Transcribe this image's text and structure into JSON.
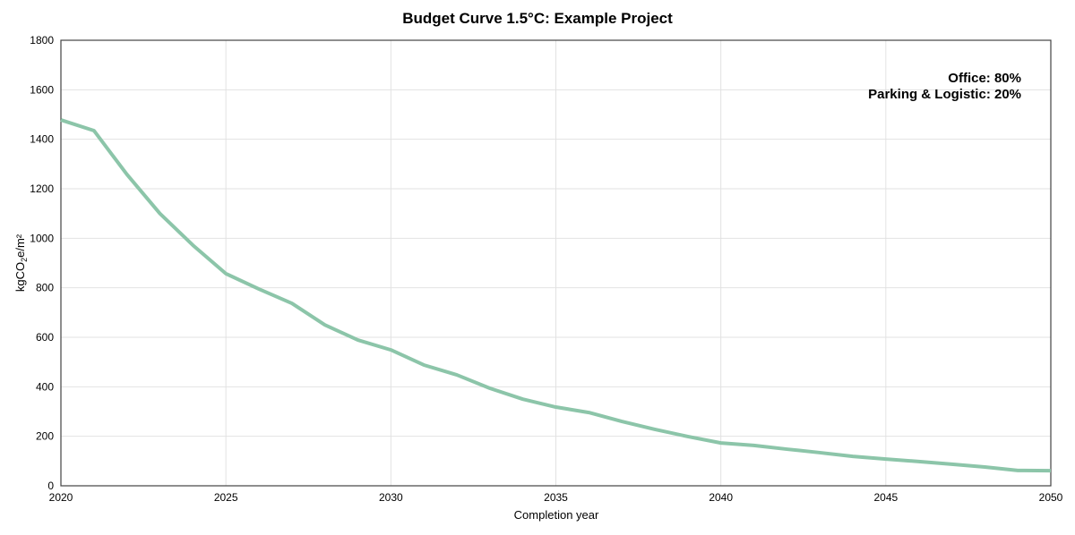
{
  "chart_data": {
    "type": "line",
    "title": "Budget Curve 1.5°C: Example Project",
    "xlabel": "Completion year",
    "ylabel_main": "kgCO",
    "ylabel_sub": "2",
    "ylabel_rest": "e/m²",
    "xlim": [
      2020,
      2050
    ],
    "ylim": [
      0,
      1800
    ],
    "xticks": [
      2020,
      2025,
      2030,
      2035,
      2040,
      2045,
      2050
    ],
    "yticks": [
      0,
      200,
      400,
      600,
      800,
      1000,
      1200,
      1400,
      1600,
      1800
    ],
    "grid": true,
    "annotations": [
      "Office: 80%",
      "Parking & Logistic: 20%"
    ],
    "annotation_placement": "top-right",
    "series": [
      {
        "name": "Budget curve",
        "color": "#8cc5a9",
        "x": [
          2020,
          2021,
          2022,
          2023,
          2024,
          2025,
          2026,
          2027,
          2028,
          2029,
          2030,
          2031,
          2032,
          2033,
          2034,
          2035,
          2036,
          2037,
          2038,
          2039,
          2040,
          2041,
          2042,
          2043,
          2044,
          2045,
          2046,
          2047,
          2048,
          2049,
          2050
        ],
        "values": [
          1478,
          1435,
          1258,
          1100,
          972,
          857,
          795,
          737,
          650,
          589,
          549,
          488,
          448,
          394,
          350,
          318,
          296,
          260,
          228,
          199,
          173,
          163,
          148,
          134,
          119,
          108,
          98,
          87,
          76,
          62,
          61
        ]
      }
    ]
  }
}
